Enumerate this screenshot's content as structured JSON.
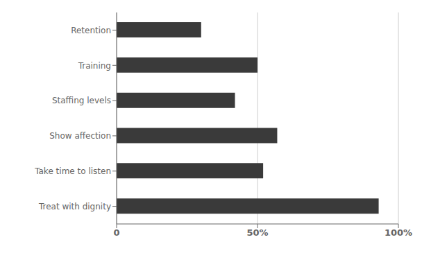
{
  "chart_data": {
    "type": "bar",
    "orientation": "horizontal",
    "categories": [
      "Treat with dignity",
      "Take time to listen",
      "Show affection",
      "Staffing levels",
      "Training",
      "Retention"
    ],
    "values": [
      93,
      52,
      57,
      42,
      50,
      30
    ],
    "color": "#3a3a3a",
    "xlim": [
      0,
      100
    ],
    "xticks": [
      0,
      {
        "value": 50,
        "label": "50%"
      },
      {
        "value": 100,
        "label": "100%"
      }
    ],
    "grid": true
  }
}
